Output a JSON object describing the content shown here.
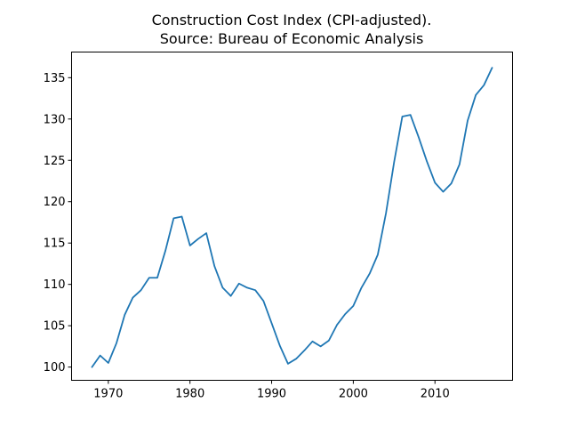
{
  "chart_data": {
    "type": "line",
    "title_lines": [
      "Construction Cost Index (CPI-adjusted).",
      "Source: Bureau of Economic Analysis"
    ],
    "xlabel": "",
    "ylabel": "",
    "xlim": [
      1965.5,
      2019.5
    ],
    "ylim": [
      98.4,
      138.1
    ],
    "xticks": [
      1970,
      1980,
      1990,
      2000,
      2010
    ],
    "yticks": [
      100,
      105,
      110,
      115,
      120,
      125,
      130,
      135
    ],
    "grid": false,
    "series": [
      {
        "color": "#1f77b4",
        "x": [
          1968,
          1969,
          1970,
          1971,
          1972,
          1973,
          1974,
          1975,
          1976,
          1977,
          1978,
          1979,
          1980,
          1981,
          1982,
          1983,
          1984,
          1985,
          1986,
          1987,
          1988,
          1989,
          1990,
          1991,
          1992,
          1993,
          1994,
          1995,
          1996,
          1997,
          1998,
          1999,
          2000,
          2001,
          2002,
          2003,
          2004,
          2005,
          2006,
          2007,
          2008,
          2009,
          2010,
          2011,
          2012,
          2013,
          2014,
          2015,
          2016,
          2017
        ],
        "y": [
          100.0,
          101.4,
          100.5,
          102.9,
          106.3,
          108.4,
          109.3,
          110.8,
          110.8,
          114.1,
          118.0,
          118.2,
          114.7,
          115.5,
          116.2,
          112.2,
          109.6,
          108.6,
          110.1,
          109.6,
          109.3,
          108.0,
          105.3,
          102.6,
          100.4,
          101.0,
          102.0,
          103.1,
          102.5,
          103.2,
          105.1,
          106.4,
          107.4,
          109.6,
          111.3,
          113.6,
          118.6,
          124.8,
          130.3,
          130.5,
          127.8,
          124.9,
          122.3,
          121.2,
          122.2,
          124.5,
          129.8,
          132.9,
          134.1,
          136.2
        ]
      }
    ]
  }
}
